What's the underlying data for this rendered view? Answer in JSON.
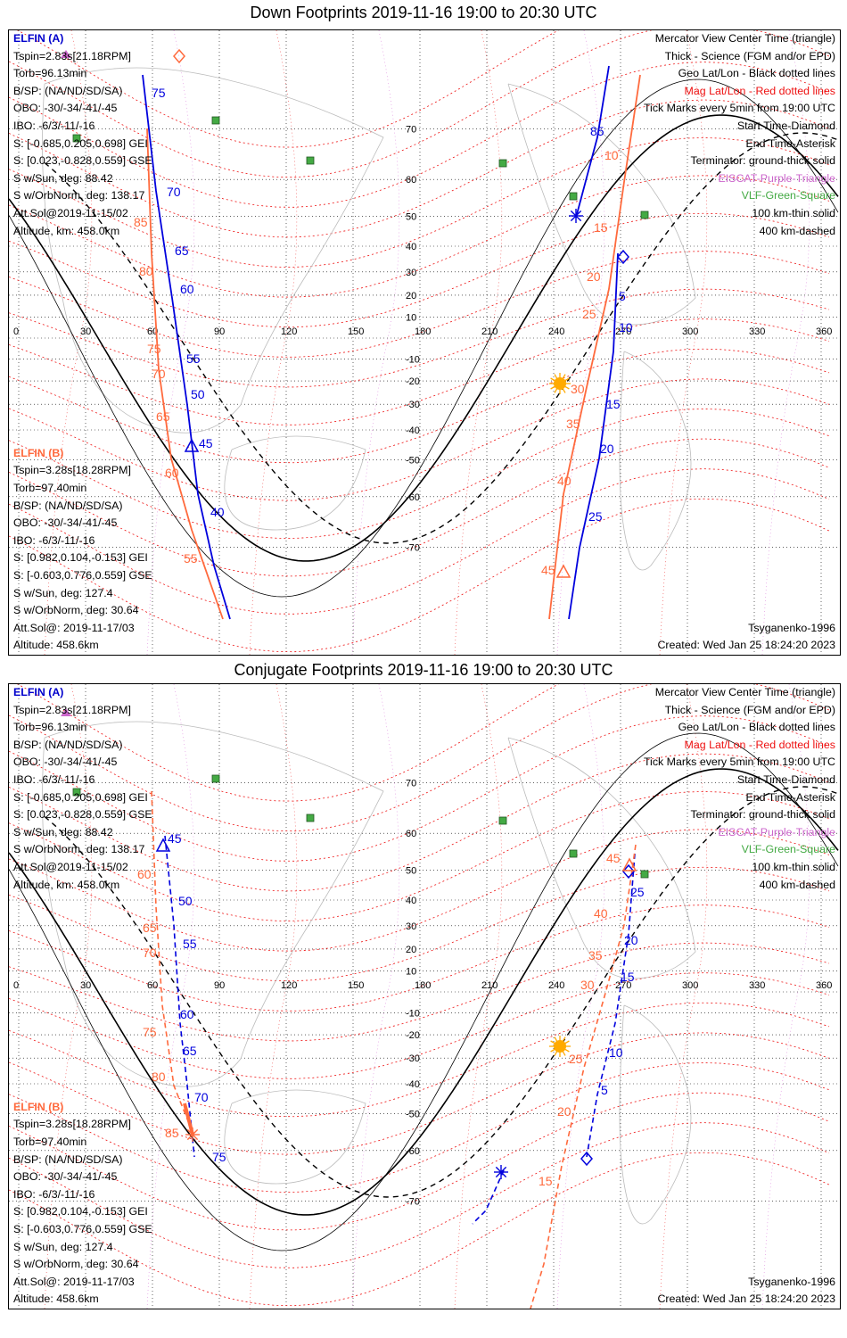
{
  "titles": {
    "down": "Down Footprints 2019-11-16 19:00 to 20:30 UTC",
    "conj": "Conjugate Footprints 2019-11-16 19:00 to 20:30 UTC"
  },
  "elfin_a": {
    "name": "ELFIN (A)",
    "lines": [
      "Tspin=2.83s[21.18RPM]",
      "Torb=96.13min",
      "B/SP: (NA/ND/SD/SA)",
      "OBO: -30/-34/-41/-45",
      "IBO: -6/3/-11/-16",
      "S: [-0.685,0.205,0.698] GEI",
      "S: [0.023,-0.828,0.559] GSE",
      "S w/Sun, deg: 88.42",
      "S w/OrbNorm, deg: 138.17",
      "Att.Sol@2019-11-15/02",
      "Altitude, km: 458.0km"
    ]
  },
  "elfin_b": {
    "name": "ELFIN (B)",
    "lines": [
      "Tspin=3.28s[18.28RPM]",
      "Torb=97.40min",
      "B/SP: (NA/ND/SD/SA)",
      "OBO: -30/-34/-41/-45",
      "IBO: -6/3/-11/-16",
      "S: [0.982,0.104,-0.153] GEI",
      "S: [-0.603,0.776,0.559] GSE",
      "S w/Sun, deg: 127.4",
      "S w/OrbNorm, deg: 30.64",
      "Att.Sol@: 2019-11-17/03",
      "Altitude: 458.6km"
    ]
  },
  "legend": {
    "mercator": "Mercator View Center Time (triangle)",
    "thick": "Thick - Science (FGM and/or EPD)",
    "geo": "Geo Lat/Lon - Black dotted lines",
    "mag": "Mag Lat/Lon - Red dotted lines",
    "ticks": "Tick Marks every 5min from 19:00 UTC",
    "start": "Start Time-Diamond",
    "end": "End Time-Asterisk",
    "terminator": "Terminator: ground-thick solid",
    "eiscat": "EISCAT-Purple-Triangle",
    "vlf": "VLF-Green-Square",
    "km100": "100 km-thin solid",
    "km400": "400 km-dashed"
  },
  "footer": {
    "model": "Tsyganenko-1996",
    "created": "Created: Wed Jan 25 18:24:20 2023"
  },
  "axes": {
    "lon_ticks": [
      "0",
      "30",
      "60",
      "90",
      "120",
      "150",
      "180",
      "210",
      "240",
      "270",
      "300",
      "330",
      "360"
    ],
    "lat_ticks": [
      "70",
      "60",
      "50",
      "40",
      "30",
      "20",
      "10",
      "-10",
      "-20",
      "-30",
      "-40",
      "-50",
      "-60",
      "-70"
    ]
  },
  "colors": {
    "elfin_a": "#0000dd",
    "elfin_b": "#ff6a3d",
    "geo_grid": "#000000",
    "mag_grid": "#ee1111",
    "eiscat": "#cc66cc",
    "vlf": "#44aa44",
    "sun": "#ffaa00"
  },
  "icons": {
    "start": "diamond-icon",
    "end": "asterisk-icon",
    "center": "triangle-icon",
    "sun": "sun-icon",
    "vlf": "square-icon",
    "eiscat": "triangle-icon"
  },
  "down_track_labels": {
    "a_west": [
      "75",
      "70",
      "65",
      "60",
      "55",
      "50",
      "45",
      "40"
    ],
    "b_west": [
      "85",
      "80",
      "75",
      "70",
      "65",
      "60",
      "55"
    ],
    "a_east": [
      "85",
      "5",
      "10",
      "15",
      "20",
      "25"
    ],
    "b_east": [
      "10",
      "15",
      "20",
      "25",
      "30",
      "35",
      "40",
      "45"
    ]
  },
  "conj_track_labels": {
    "a_west": [
      "45",
      "50",
      "55",
      "60",
      "65",
      "70",
      "75"
    ],
    "b_west": [
      "60",
      "65",
      "70",
      "75",
      "80",
      "85"
    ],
    "a_east": [
      "25",
      "20",
      "15",
      "10",
      "5"
    ],
    "b_east": [
      "45",
      "40",
      "35",
      "30",
      "25",
      "20",
      "15"
    ]
  }
}
